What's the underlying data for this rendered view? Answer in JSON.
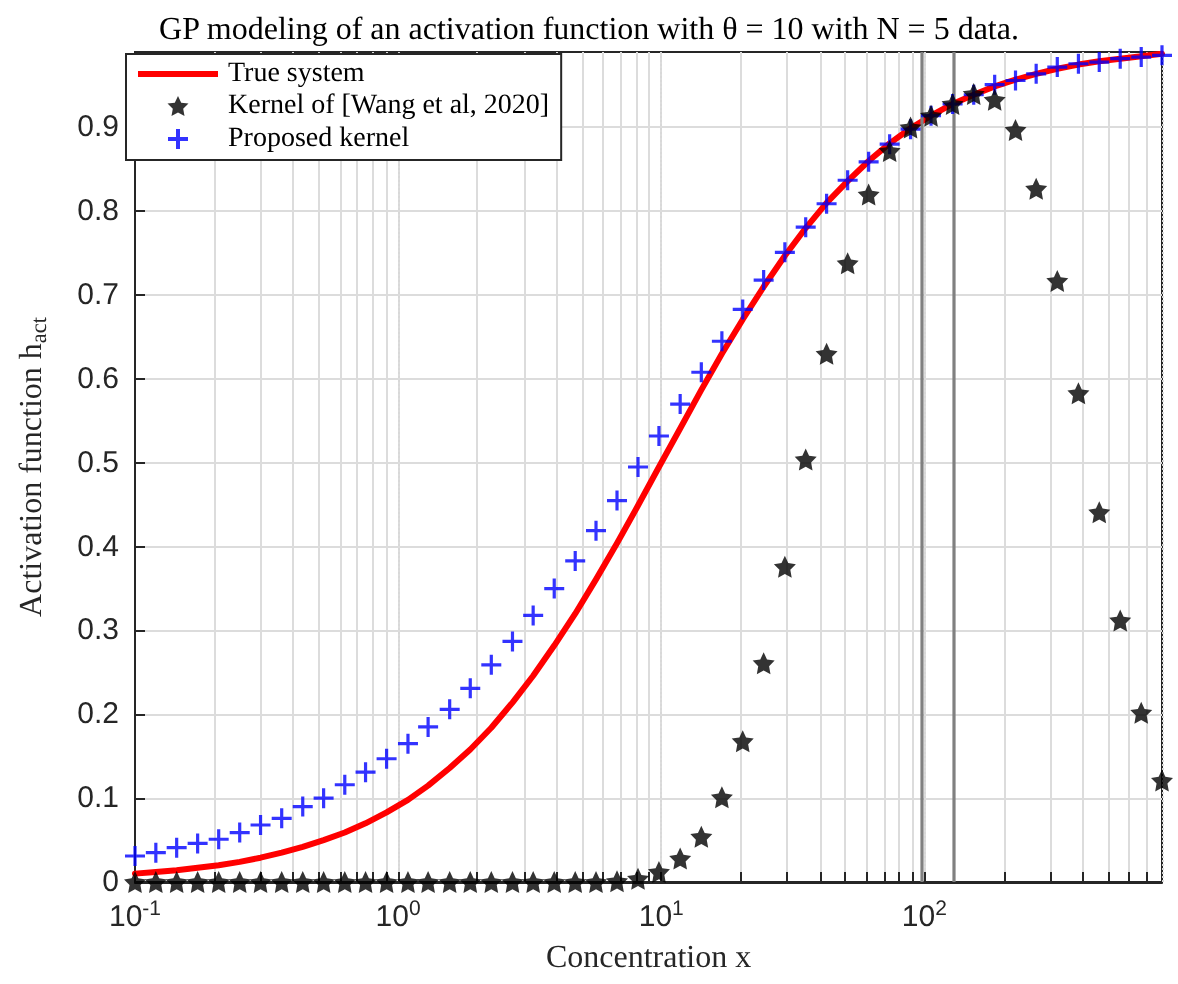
{
  "chart_data": {
    "type": "line",
    "title": "GP modeling of an activation function with θ = 10 with N = 5 data.",
    "xlabel": "Concentration x",
    "ylabel": "Activation function h$_{act}$",
    "x": [
      0.1,
      0.12,
      0.144,
      0.173,
      0.208,
      0.25,
      0.3,
      0.361,
      0.434,
      0.521,
      0.627,
      0.752,
      0.904,
      1.09,
      1.3,
      1.57,
      1.88,
      2.26,
      2.72,
      3.26,
      3.92,
      4.71,
      5.65,
      6.79,
      8.16,
      9.8,
      11.8,
      14.2,
      17,
      20.4,
      24.5,
      29.5,
      35.4,
      42.5,
      51.1,
      61.4,
      73.8,
      88.6,
      106,
      128,
      154,
      185,
      222,
      266,
      320,
      385,
      462,
      555,
      667,
      800
    ],
    "series": [
      {
        "name": "True system",
        "marker": "none",
        "color": "#ff0000",
        "values": [
          0.01,
          0.012,
          0.014,
          0.017,
          0.02,
          0.024,
          0.029,
          0.035,
          0.042,
          0.05,
          0.059,
          0.07,
          0.083,
          0.098,
          0.115,
          0.136,
          0.158,
          0.184,
          0.214,
          0.246,
          0.282,
          0.32,
          0.361,
          0.404,
          0.449,
          0.495,
          0.541,
          0.587,
          0.63,
          0.671,
          0.71,
          0.747,
          0.78,
          0.81,
          0.836,
          0.86,
          0.881,
          0.899,
          0.914,
          0.928,
          0.939,
          0.949,
          0.957,
          0.964,
          0.97,
          0.975,
          0.979,
          0.982,
          0.985,
          0.988
        ]
      },
      {
        "name": "Kernel of [Wang et al, 2020]",
        "type": "scatter",
        "marker": "star",
        "color": "#000000",
        "values": [
          0,
          0,
          0,
          0,
          0,
          0,
          0,
          0,
          0,
          0,
          0,
          0,
          0,
          0,
          0,
          0,
          0,
          0,
          0,
          0,
          0,
          0,
          0,
          0.001,
          0.004,
          0.012,
          0.028,
          0.054,
          0.101,
          0.168,
          0.261,
          0.376,
          0.504,
          0.63,
          0.738,
          0.82,
          0.872,
          0.9,
          0.914,
          0.928,
          0.94,
          0.933,
          0.897,
          0.827,
          0.717,
          0.583,
          0.441,
          0.312,
          0.202,
          0.121
        ]
      },
      {
        "name": "Proposed kernel",
        "type": "scatter",
        "marker": "cross",
        "color": "#0000ff",
        "values": [
          0.031,
          0.035,
          0.041,
          0.046,
          0.051,
          0.059,
          0.068,
          0.076,
          0.09,
          0.1,
          0.116,
          0.131,
          0.147,
          0.165,
          0.185,
          0.206,
          0.231,
          0.259,
          0.287,
          0.318,
          0.35,
          0.383,
          0.419,
          0.455,
          0.495,
          0.532,
          0.57,
          0.608,
          0.645,
          0.683,
          0.718,
          0.751,
          0.781,
          0.809,
          0.837,
          0.859,
          0.88,
          0.898,
          0.914,
          0.928,
          0.939,
          0.951,
          0.956,
          0.964,
          0.972,
          0.976,
          0.978,
          0.982,
          0.984,
          0.986
        ]
      }
    ],
    "log": "x",
    "xlim": [
      0.1,
      800
    ],
    "ylim": [
      0,
      0.99
    ],
    "xticks": [
      {
        "value": 0.1,
        "label": "10$^{-1}$"
      },
      {
        "value": 0.2,
        "label": null
      },
      {
        "value": 0.3,
        "label": null
      },
      {
        "value": 0.4,
        "label": null
      },
      {
        "value": 0.5,
        "label": null
      },
      {
        "value": 0.6,
        "label": null
      },
      {
        "value": 0.7,
        "label": null
      },
      {
        "value": 0.8,
        "label": null
      },
      {
        "value": 0.9,
        "label": null
      },
      {
        "value": 1,
        "label": "10$^{0}$"
      },
      {
        "value": 2,
        "label": null
      },
      {
        "value": 3,
        "label": null
      },
      {
        "value": 4,
        "label": null
      },
      {
        "value": 5,
        "label": null
      },
      {
        "value": 6,
        "label": null
      },
      {
        "value": 7,
        "label": null
      },
      {
        "value": 8,
        "label": null
      },
      {
        "value": 9,
        "label": null
      },
      {
        "value": 10,
        "label": "10$^{1}$"
      },
      {
        "value": 20,
        "label": null
      },
      {
        "value": 30,
        "label": null
      },
      {
        "value": 40,
        "label": null
      },
      {
        "value": 50,
        "label": null
      },
      {
        "value": 60,
        "label": null
      },
      {
        "value": 70,
        "label": null
      },
      {
        "value": 80,
        "label": null
      },
      {
        "value": 90,
        "label": null
      },
      {
        "value": 100,
        "label": "10$^{2}$"
      },
      {
        "value": 200,
        "label": null
      },
      {
        "value": 300,
        "label": null
      },
      {
        "value": 400,
        "label": null
      },
      {
        "value": 500,
        "label": null
      },
      {
        "value": 600,
        "label": null
      },
      {
        "value": 700,
        "label": null
      }
    ],
    "yticks": [
      0,
      0.1,
      0.2,
      0.3,
      0.4,
      0.5,
      0.6,
      0.7,
      0.8,
      0.9
    ],
    "grid": true,
    "legend": "top left",
    "ref_lines": [
      {
        "axis": "x",
        "value": 97,
        "color": "#808080"
      },
      {
        "axis": "x",
        "value": 129,
        "color": "#808080"
      }
    ]
  }
}
